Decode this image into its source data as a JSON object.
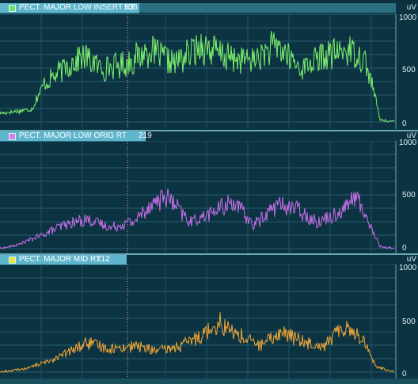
{
  "channels": [
    {
      "name": "PECT. MAJOR LOW INSERT RT",
      "value": "538",
      "unit": "uV",
      "ticks": [
        "1000",
        "500",
        "0"
      ],
      "color": "#7cf06a",
      "swatch_color": "#6ee36a"
    },
    {
      "name": "PECT. MAJOR LOW ORIG RT",
      "value": "219",
      "unit": "uV",
      "ticks": [
        "1000",
        "500",
        "0"
      ],
      "color": "#c56ee8",
      "swatch_color": "#d779f2"
    },
    {
      "name": "PECT. MAJOR MID RT",
      "value": "212",
      "unit": "uV",
      "ticks": [
        "1000",
        "500",
        "0"
      ],
      "color": "#f0a635",
      "swatch_color": "#f2e23a"
    }
  ]
}
